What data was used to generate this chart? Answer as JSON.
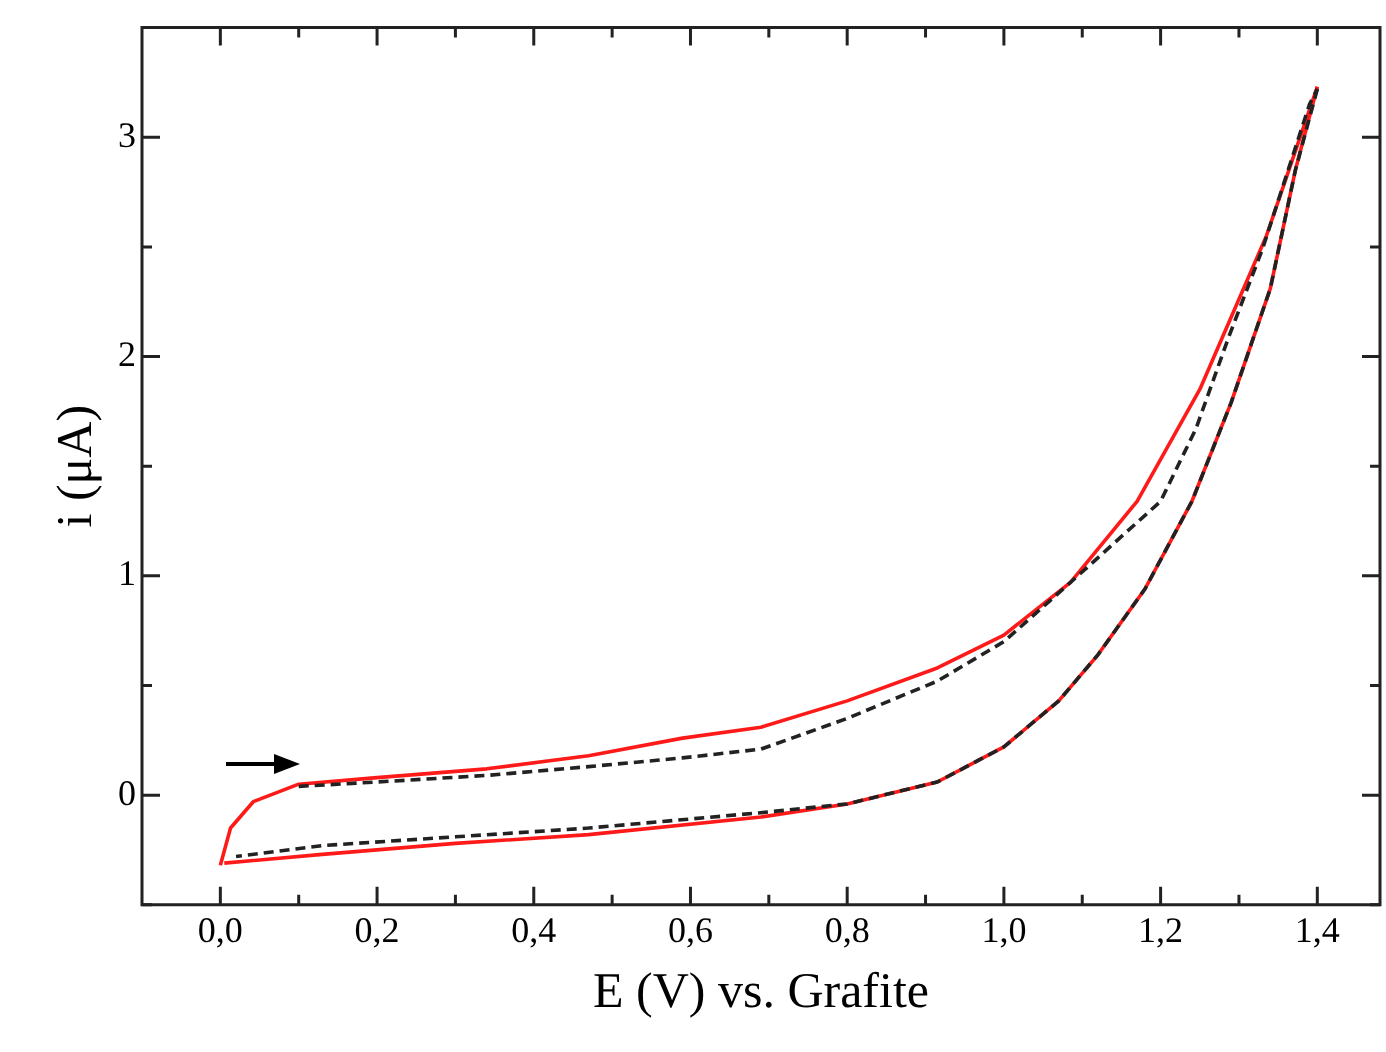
{
  "chart_data": {
    "type": "line",
    "xlabel": "E (V) vs. Grafite",
    "ylabel": "i (μA)",
    "xlim": [
      -0.1,
      1.48
    ],
    "ylim": [
      -0.5,
      3.5
    ],
    "xticks": [
      {
        "value": 0,
        "label": "0,0"
      },
      {
        "value": 0.1,
        "label": null
      },
      {
        "value": 0.2,
        "label": "0,2"
      },
      {
        "value": 0.3,
        "label": null
      },
      {
        "value": 0.4,
        "label": "0,4"
      },
      {
        "value": 0.5,
        "label": null
      },
      {
        "value": 0.6,
        "label": "0,6"
      },
      {
        "value": 0.7,
        "label": null
      },
      {
        "value": 0.8,
        "label": "0,8"
      },
      {
        "value": 0.9,
        "label": null
      },
      {
        "value": 1.0,
        "label": "1,0"
      },
      {
        "value": 1.1,
        "label": null
      },
      {
        "value": 1.2,
        "label": "1,2"
      },
      {
        "value": 1.3,
        "label": null
      },
      {
        "value": 1.4,
        "label": "1,4"
      }
    ],
    "yticks": [
      {
        "value": -0.5,
        "label": null
      },
      0,
      {
        "value": 0.5,
        "label": null
      },
      1,
      {
        "value": 1.5,
        "label": null
      },
      2,
      {
        "value": 2.5,
        "label": null
      },
      3
    ],
    "grid": false,
    "legend": false,
    "marker": "none",
    "series": [
      {
        "color": "#ff1a1a",
        "line_style": "solid",
        "x": [
          0,
          0.013,
          0.042,
          0.1,
          0.2,
          0.34,
          0.47,
          0.59,
          0.69,
          0.8,
          0.915,
          1.0,
          1.085,
          1.17,
          1.25,
          1.335,
          1.4
        ],
        "values": [
          -0.32,
          -0.15,
          -0.03,
          0.05,
          0.08,
          0.12,
          0.18,
          0.26,
          0.31,
          0.43,
          0.58,
          0.73,
          0.97,
          1.34,
          1.85,
          2.55,
          3.23
        ]
      },
      {
        "color": "#ff1a1a",
        "line_style": "solid",
        "x": [
          1.4,
          1.372,
          1.34,
          1.29,
          1.24,
          1.18,
          1.12,
          1.07,
          1.0,
          0.915,
          0.8,
          0.69,
          0.47,
          0.3,
          0.13,
          0.005
        ],
        "values": [
          3.23,
          2.85,
          2.31,
          1.79,
          1.34,
          0.94,
          0.64,
          0.43,
          0.22,
          0.06,
          -0.04,
          -0.1,
          -0.18,
          -0.22,
          -0.27,
          -0.31
        ]
      },
      {
        "color": "#222222",
        "line_style": "dashed",
        "x": [
          0.1,
          0.2,
          0.34,
          0.47,
          0.59,
          0.69,
          0.8,
          0.915,
          1.0,
          1.085,
          1.2,
          1.245,
          1.287,
          1.33,
          1.39,
          1.4
        ],
        "values": [
          0.04,
          0.06,
          0.09,
          0.13,
          0.17,
          0.21,
          0.35,
          0.52,
          0.7,
          0.97,
          1.34,
          1.67,
          2.09,
          2.49,
          3.15,
          3.22
        ]
      },
      {
        "color": "#222222",
        "line_style": "dashed",
        "x": [
          1.4,
          1.372,
          1.34,
          1.29,
          1.24,
          1.18,
          1.12,
          1.07,
          1.0,
          0.915,
          0.8,
          0.69,
          0.47,
          0.3,
          0.13,
          0.02
        ],
        "values": [
          3.22,
          2.85,
          2.31,
          1.79,
          1.34,
          0.94,
          0.64,
          0.43,
          0.22,
          0.06,
          -0.04,
          -0.08,
          -0.15,
          -0.19,
          -0.23,
          -0.28
        ]
      }
    ]
  }
}
